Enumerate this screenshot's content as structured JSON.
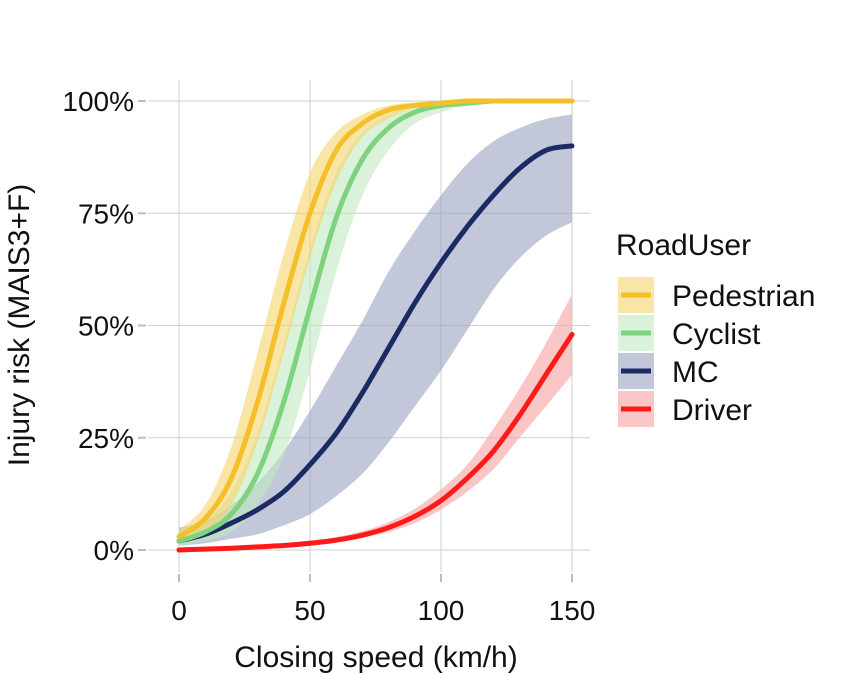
{
  "chart_data": {
    "type": "line",
    "xlabel": "Closing speed (km/h)",
    "ylabel": "Injury risk (MAIS3+F)",
    "xlim": [
      0,
      150
    ],
    "ylim": [
      0,
      1
    ],
    "x_ticks": [
      0,
      50,
      100,
      150
    ],
    "x_tick_labels": [
      "0",
      "50",
      "100",
      "150"
    ],
    "y_ticks": [
      0,
      0.25,
      0.5,
      0.75,
      1.0
    ],
    "y_tick_labels": [
      "0%",
      "25%",
      "50%",
      "75%",
      "100%"
    ],
    "grid": true,
    "legend_title": "RoadUser",
    "legend_position": "right",
    "x": [
      0,
      10,
      20,
      30,
      40,
      50,
      60,
      70,
      80,
      90,
      100,
      110,
      120,
      130,
      140,
      150
    ],
    "series": [
      {
        "name": "Pedestrian",
        "color": "#f5bf2a",
        "band_color": "#f5d66a",
        "values": [
          0.03,
          0.07,
          0.16,
          0.33,
          0.55,
          0.75,
          0.89,
          0.95,
          0.98,
          0.99,
          0.995,
          1.0,
          1.0,
          1.0,
          1.0,
          1.0
        ],
        "lower": [
          0.02,
          0.04,
          0.1,
          0.24,
          0.44,
          0.65,
          0.82,
          0.92,
          0.96,
          0.985,
          0.99,
          1.0,
          1.0,
          1.0,
          1.0,
          1.0
        ],
        "upper": [
          0.045,
          0.1,
          0.23,
          0.44,
          0.66,
          0.84,
          0.93,
          0.97,
          0.99,
          0.997,
          1.0,
          1.0,
          1.0,
          1.0,
          1.0,
          1.0
        ]
      },
      {
        "name": "Cyclist",
        "color": "#7fd37f",
        "band_color": "#bfe9bf",
        "values": [
          0.02,
          0.04,
          0.08,
          0.17,
          0.33,
          0.54,
          0.74,
          0.87,
          0.94,
          0.975,
          0.99,
          0.995,
          1.0,
          1.0,
          1.0,
          1.0
        ],
        "lower": [
          0.01,
          0.02,
          0.04,
          0.1,
          0.21,
          0.4,
          0.62,
          0.79,
          0.89,
          0.95,
          0.975,
          0.99,
          0.995,
          1.0,
          1.0,
          1.0
        ],
        "upper": [
          0.035,
          0.065,
          0.13,
          0.26,
          0.46,
          0.67,
          0.84,
          0.93,
          0.97,
          0.99,
          0.997,
          1.0,
          1.0,
          1.0,
          1.0,
          1.0
        ]
      },
      {
        "name": "MC",
        "color": "#1c2a64",
        "band_color": "#9aa1c2",
        "values": [
          0.02,
          0.035,
          0.06,
          0.09,
          0.13,
          0.19,
          0.26,
          0.35,
          0.45,
          0.55,
          0.64,
          0.72,
          0.79,
          0.85,
          0.89,
          0.9
        ],
        "lower": [
          0.01,
          0.015,
          0.025,
          0.035,
          0.055,
          0.08,
          0.12,
          0.17,
          0.24,
          0.32,
          0.4,
          0.49,
          0.58,
          0.65,
          0.7,
          0.73
        ],
        "upper": [
          0.05,
          0.065,
          0.1,
          0.15,
          0.22,
          0.31,
          0.41,
          0.51,
          0.62,
          0.71,
          0.79,
          0.86,
          0.91,
          0.94,
          0.96,
          0.97
        ]
      },
      {
        "name": "Driver",
        "color": "#ff1a1a",
        "band_color": "#f8a0a0",
        "values": [
          0.0,
          0.002,
          0.004,
          0.007,
          0.01,
          0.015,
          0.022,
          0.033,
          0.05,
          0.075,
          0.11,
          0.16,
          0.22,
          0.3,
          0.39,
          0.48
        ],
        "lower": [
          0.0,
          0.001,
          0.002,
          0.004,
          0.007,
          0.011,
          0.017,
          0.027,
          0.04,
          0.06,
          0.09,
          0.13,
          0.18,
          0.25,
          0.32,
          0.39
        ],
        "upper": [
          0.002,
          0.004,
          0.007,
          0.011,
          0.015,
          0.021,
          0.029,
          0.042,
          0.062,
          0.092,
          0.135,
          0.19,
          0.27,
          0.36,
          0.46,
          0.57
        ]
      }
    ]
  }
}
